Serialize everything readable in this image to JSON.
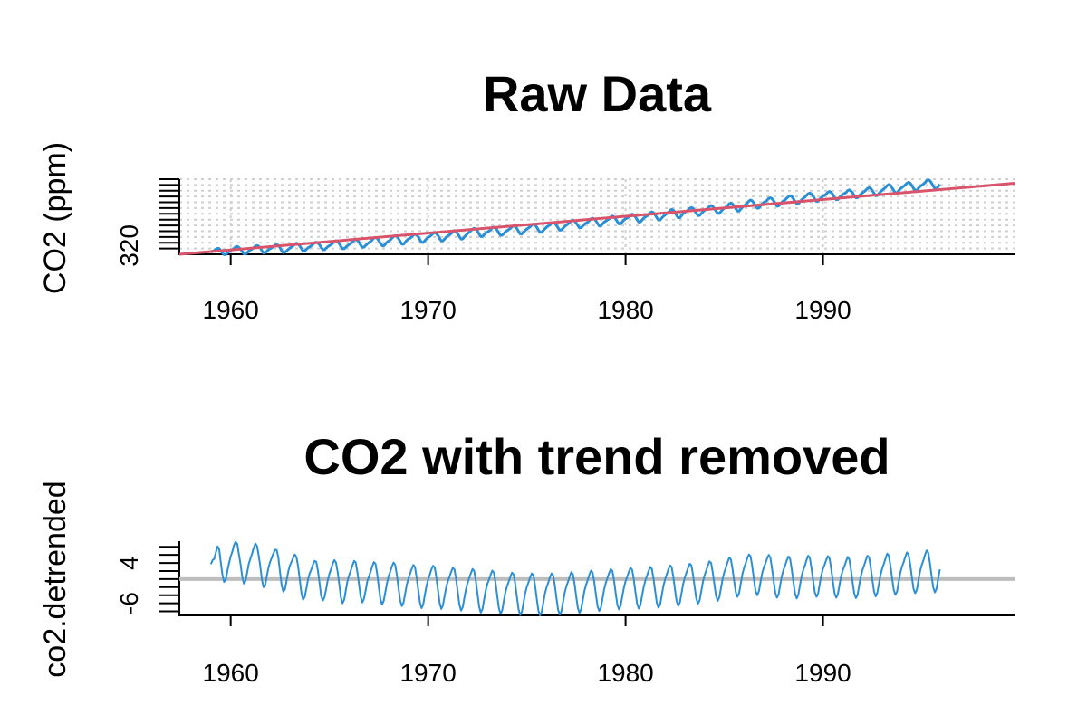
{
  "chart_data": [
    {
      "type": "line",
      "title": "Raw Data",
      "xlabel": "",
      "ylabel": "CO2 (ppm)",
      "xlim": [
        1957.4,
        1999.7
      ],
      "ylim": [
        314,
        366
      ],
      "x_ticks": [
        1960,
        1970,
        1980,
        1990
      ],
      "y_ticks_labeled": [
        320
      ],
      "grid": true,
      "line_color": "#2b8fd6",
      "trend_color": "#d9536b",
      "series": [
        {
          "role": "data",
          "x_start": 1959.0,
          "x_step": 0.08333333,
          "values": [
            315.4,
            316.3,
            316.5,
            317.6,
            318.1,
            318.0,
            316.5,
            314.8,
            313.8,
            313.8,
            315.0,
            315.9,
            316.6,
            317.2,
            318.0,
            319.1,
            319.5,
            318.7,
            317.7,
            315.9,
            314.3,
            314.2,
            315.1,
            316.2,
            317.0,
            317.6,
            318.6,
            319.6,
            320.1,
            319.6,
            318.5,
            316.4,
            314.8,
            315.2,
            316.1,
            317.2,
            317.9,
            318.5,
            319.4,
            320.4,
            320.8,
            320.2,
            318.6,
            316.4,
            315.2,
            315.5,
            316.4,
            317.4,
            318.3,
            319.0,
            319.9,
            321.2,
            321.7,
            321.1,
            319.8,
            317.9,
            316.2,
            316.3,
            317.4,
            318.5,
            319.1,
            319.9,
            320.9,
            322.0,
            322.4,
            321.8,
            320.6,
            318.7,
            317.2,
            317.1,
            318.2,
            319.3,
            320.0,
            320.6,
            321.7,
            322.9,
            323.4,
            322.9,
            321.4,
            319.4,
            317.8,
            317.9,
            318.9,
            320.0,
            320.8,
            321.6,
            322.5,
            323.7,
            324.1,
            323.7,
            322.3,
            320.3,
            318.9,
            318.9,
            320.1,
            321.2,
            322.1,
            322.8,
            324.0,
            325.2,
            325.7,
            325.1,
            323.5,
            321.6,
            320.0,
            319.8,
            321.0,
            322.4,
            323.2,
            324.0,
            325.2,
            326.3,
            326.9,
            326.3,
            324.8,
            322.9,
            321.1,
            321.0,
            322.3,
            323.6,
            324.6,
            325.1,
            326.0,
            327.4,
            327.8,
            327.3,
            326.0,
            324.0,
            322.2,
            322.2,
            323.4,
            324.7,
            325.8,
            326.3,
            327.3,
            328.4,
            329.0,
            328.4,
            326.9,
            324.9,
            323.3,
            323.3,
            324.6,
            325.8,
            326.8,
            327.4,
            328.4,
            329.8,
            330.4,
            329.7,
            328.1,
            326.2,
            324.6,
            324.6,
            326.0,
            327.2,
            328.5,
            329.2,
            330.3,
            331.4,
            332.0,
            331.4,
            330.0,
            328.0,
            326.3,
            326.3,
            327.6,
            328.8,
            329.4,
            330.0,
            331.0,
            332.3,
            332.8,
            332.2,
            330.6,
            328.6,
            327.1,
            327.2,
            328.4,
            329.5,
            330.4,
            331.1,
            331.9,
            333.1,
            333.7,
            333.1,
            331.7,
            329.7,
            328.0,
            328.1,
            329.3,
            330.5,
            331.5,
            332.3,
            333.0,
            334.2,
            334.9,
            334.3,
            332.7,
            330.8,
            329.2,
            329.2,
            330.5,
            331.7,
            332.8,
            333.6,
            334.3,
            335.4,
            336.0,
            335.5,
            334.0,
            332.2,
            330.7,
            330.8,
            332.0,
            333.2,
            334.2,
            335.0,
            335.9,
            337.1,
            337.7,
            337.1,
            335.7,
            333.8,
            332.3,
            332.4,
            333.6,
            334.8,
            335.6,
            336.2,
            337.3,
            338.6,
            339.0,
            338.4,
            337.1,
            335.3,
            333.6,
            333.6,
            335.0,
            336.3,
            337.0,
            337.8,
            338.6,
            339.9,
            340.5,
            339.9,
            338.5,
            336.6,
            335.0,
            335.0,
            336.4,
            337.7,
            338.6,
            339.1,
            339.9,
            341.1,
            341.8,
            341.3,
            339.9,
            337.9,
            336.3,
            336.4,
            337.7,
            339.0,
            339.9,
            340.5,
            341.5,
            342.9,
            343.4,
            342.8,
            341.3,
            339.3,
            337.7,
            337.8,
            339.1,
            340.3,
            341.2,
            342.1,
            342.9,
            344.3,
            345.1,
            344.5,
            343.0,
            341.0,
            339.3,
            339.3,
            340.8,
            342.1,
            343.1,
            343.8,
            344.5,
            345.8,
            346.4,
            345.8,
            344.3,
            342.4,
            340.8,
            340.9,
            342.2,
            343.4,
            344.4,
            345.1,
            345.9,
            347.3,
            347.8,
            347.2,
            345.7,
            343.8,
            342.3,
            342.3,
            343.6,
            344.9,
            345.9,
            346.7,
            347.6,
            349.0,
            349.5,
            348.8,
            347.3,
            345.5,
            343.9,
            343.9,
            345.3,
            346.5,
            347.7,
            348.5,
            349.5,
            350.9,
            351.6,
            351.0,
            349.4,
            347.4,
            345.9,
            346.0,
            347.5,
            348.8,
            350.0,
            350.5,
            351.4,
            352.7,
            353.1,
            352.5,
            351.1,
            349.0,
            347.3,
            347.4,
            348.8,
            350.1,
            351.1,
            351.8,
            352.9,
            354.0,
            354.6,
            354.0,
            352.5,
            350.5,
            348.9,
            349.0,
            350.4,
            351.7,
            352.8,
            353.6,
            354.8,
            355.9,
            356.4,
            355.8,
            354.3,
            352.2,
            350.6,
            350.8,
            352.2,
            353.4,
            354.2,
            354.9,
            355.8,
            357.0,
            357.5,
            356.8,
            355.3,
            353.4,
            351.8,
            351.9,
            353.3,
            354.5,
            355.4,
            356.1,
            356.8,
            358.1,
            358.6,
            357.9,
            356.5,
            354.6,
            353.1,
            353.2,
            354.5,
            355.7,
            356.6,
            357.4,
            358.3,
            359.6,
            360.1,
            359.6,
            358.1,
            356.2,
            354.6,
            354.7,
            356.1,
            357.4,
            358.4,
            359.3,
            360.3,
            361.6,
            362.3,
            361.6,
            360.0,
            358.1,
            356.5,
            356.6,
            358.0,
            359.3,
            360.3,
            361.1,
            362.0,
            363.2,
            363.9,
            363.2,
            361.6,
            359.7,
            358.2,
            358.3,
            359.8,
            361.0,
            361.8,
            362.6,
            363.6,
            365.1,
            365.6,
            364.9,
            363.3,
            361.2,
            359.5,
            359.6,
            361.0,
            362.4
          ]
        },
        {
          "role": "trend",
          "x": [
            1957.4,
            1999.7
          ],
          "values": [
            314.0,
            363.2
          ]
        }
      ]
    },
    {
      "type": "line",
      "title": "CO2 with trend removed",
      "xlabel": "",
      "ylabel": "co2.detrended",
      "xlim": [
        1957.4,
        1999.7
      ],
      "ylim": [
        -9,
        9.4
      ],
      "x_ticks": [
        1960,
        1970,
        1980,
        1990
      ],
      "y_ticks_labeled": [
        4,
        -6
      ],
      "y_ticks": [
        -8,
        -6,
        -4,
        -2,
        0,
        2,
        4,
        6,
        8
      ],
      "grid": false,
      "line_color": "#2b8fd6",
      "reference_line": {
        "y": 0,
        "color": "#bdbdbd"
      },
      "series": [
        {
          "role": "data",
          "x_start": 1959.0,
          "x_step": 0.08333333,
          "values": [
            3.7,
            4.7,
            5.0,
            6.6,
            8.1,
            7.4,
            4.1,
            1.0,
            -0.7,
            -0.2,
            2.0,
            4.0,
            5.6,
            6.8,
            8.4,
            9.2,
            8.7,
            6.1,
            3.7,
            0.6,
            -1.1,
            -0.5,
            1.6,
            3.8,
            5.1,
            6.3,
            7.7,
            8.8,
            8.2,
            5.9,
            3.1,
            -0.2,
            -2.0,
            -1.4,
            0.8,
            2.9,
            4.3,
            5.3,
            6.4,
            7.3,
            7.2,
            5.2,
            1.7,
            -1.6,
            -3.1,
            -2.5,
            -0.3,
            1.9,
            3.4,
            4.3,
            5.3,
            6.1,
            5.4,
            3.1,
            -0.2,
            -3.5,
            -5.1,
            -4.4,
            -2.3,
            -0.1,
            1.4,
            2.4,
            3.6,
            4.5,
            4.3,
            2.1,
            -1.0,
            -4.2,
            -5.3,
            -4.5,
            -2.5,
            -0.3,
            1.3,
            2.5,
            3.8,
            4.7,
            4.1,
            1.8,
            -1.3,
            -4.6,
            -6.0,
            -5.1,
            -2.7,
            -0.4,
            1.0,
            2.1,
            3.4,
            4.5,
            4.1,
            1.7,
            -1.3,
            -4.4,
            -5.8,
            -4.9,
            -2.9,
            -0.6,
            0.6,
            1.8,
            3.1,
            4.2,
            3.8,
            1.4,
            -1.9,
            -5.0,
            -6.3,
            -5.4,
            -3.2,
            -1.0,
            0.8,
            1.9,
            3.2,
            4.1,
            3.5,
            1.0,
            -2.2,
            -5.3,
            -6.7,
            -5.9,
            -3.7,
            -1.4,
            0.1,
            1.3,
            2.5,
            3.5,
            3.0,
            0.4,
            -2.7,
            -5.8,
            -7.2,
            -6.3,
            -3.9,
            -1.7,
            -0.1,
            1.1,
            2.4,
            3.3,
            2.9,
            0.4,
            -2.8,
            -5.9,
            -7.4,
            -6.5,
            -4.2,
            -2.0,
            -0.5,
            0.6,
            1.8,
            2.8,
            2.4,
            0.0,
            -3.2,
            -6.3,
            -7.8,
            -7.0,
            -4.7,
            -2.5,
            -0.9,
            0.3,
            1.5,
            2.5,
            2.0,
            -0.5,
            -3.7,
            -6.8,
            -8.3,
            -7.5,
            -5.1,
            -2.8,
            -1.2,
            -0.1,
            1.1,
            2.1,
            1.6,
            -1.0,
            -4.2,
            -7.2,
            -8.6,
            -7.8,
            -5.4,
            -3.2,
            -1.7,
            -0.6,
            0.6,
            1.6,
            1.1,
            -1.4,
            -4.6,
            -7.6,
            -8.9,
            -8.1,
            -5.8,
            -3.5,
            -1.9,
            -0.8,
            0.4,
            1.4,
            0.9,
            -1.6,
            -4.8,
            -7.8,
            -9.0,
            -8.2,
            -5.9,
            -3.6,
            -2.0,
            -0.9,
            0.4,
            1.4,
            0.9,
            -1.5,
            -4.7,
            -7.6,
            -8.8,
            -8.0,
            -5.7,
            -3.4,
            -1.8,
            -0.7,
            0.6,
            1.7,
            1.2,
            -1.2,
            -4.3,
            -7.2,
            -8.4,
            -7.5,
            -5.2,
            -2.9,
            -1.4,
            -0.2,
            1.1,
            2.1,
            1.6,
            -0.8,
            -3.9,
            -6.8,
            -7.9,
            -7.1,
            -4.8,
            -2.5,
            -0.9,
            0.3,
            1.5,
            2.5,
            2.0,
            -0.4,
            -3.5,
            -6.4,
            -7.5,
            -6.6,
            -4.3,
            -2.1,
            -0.5,
            0.6,
            1.8,
            2.8,
            2.3,
            -0.1,
            -3.2,
            -6.1,
            -7.3,
            -6.5,
            -4.2,
            -2.0,
            -0.4,
            0.8,
            2.0,
            3.0,
            2.5,
            0.1,
            -3.0,
            -5.9,
            -7.1,
            -6.3,
            -4.0,
            -1.7,
            -0.1,
            1.1,
            2.4,
            3.4,
            3.0,
            0.6,
            -2.5,
            -5.4,
            -6.6,
            -5.8,
            -3.5,
            -1.2,
            0.4,
            1.6,
            2.8,
            3.8,
            3.4,
            1.0,
            -2.0,
            -4.9,
            -6.1,
            -5.3,
            -3.0,
            -0.7,
            0.9,
            2.1,
            3.4,
            4.4,
            4.0,
            1.6,
            -1.4,
            -4.2,
            -5.4,
            -4.5,
            -2.2,
            0.1,
            1.7,
            2.9,
            4.2,
            5.3,
            4.9,
            2.5,
            -0.5,
            -3.3,
            -4.4,
            -3.5,
            -1.1,
            1.2,
            2.8,
            3.9,
            5.2,
            6.1,
            5.6,
            3.1,
            0.0,
            -2.9,
            -4.0,
            -3.1,
            -0.8,
            1.4,
            2.9,
            3.9,
            5.1,
            6.0,
            5.3,
            2.7,
            -0.5,
            -3.4,
            -4.6,
            -3.8,
            -1.4,
            0.8,
            2.3,
            3.4,
            4.7,
            5.6,
            5.0,
            2.4,
            -0.7,
            -3.6,
            -4.8,
            -3.9,
            -1.5,
            0.7,
            2.3,
            3.4,
            4.8,
            5.8,
            5.2,
            2.7,
            -0.4,
            -3.3,
            -4.4,
            -3.6,
            -1.2,
            1.0,
            2.6,
            3.6,
            4.8,
            5.7,
            5.1,
            2.5,
            -0.6,
            -3.5,
            -4.6,
            -3.8,
            -1.5,
            0.7,
            2.2,
            3.2,
            4.4,
            5.5,
            4.9,
            2.3,
            -0.8,
            -3.6,
            -4.7,
            -3.9,
            -1.5,
            0.7,
            2.3,
            3.4,
            4.7,
            5.8,
            5.4,
            2.9,
            -0.2,
            -3.1,
            -4.3,
            -3.4,
            -1.1,
            1.1,
            2.7,
            3.8,
            5.1,
            6.3,
            5.8,
            3.3,
            0.2,
            -2.7,
            -3.9,
            -3.1,
            -0.7,
            1.6,
            3.1,
            4.2,
            5.5,
            6.6,
            6.1,
            3.6,
            0.5,
            -2.4,
            -3.5,
            -2.7,
            -0.3,
            2.0,
            3.5,
            4.6,
            6.0,
            7.1,
            6.5,
            3.9,
            0.7,
            -2.1,
            -3.3,
            -2.4,
            0.1,
            2.4
          ]
        }
      ]
    }
  ]
}
